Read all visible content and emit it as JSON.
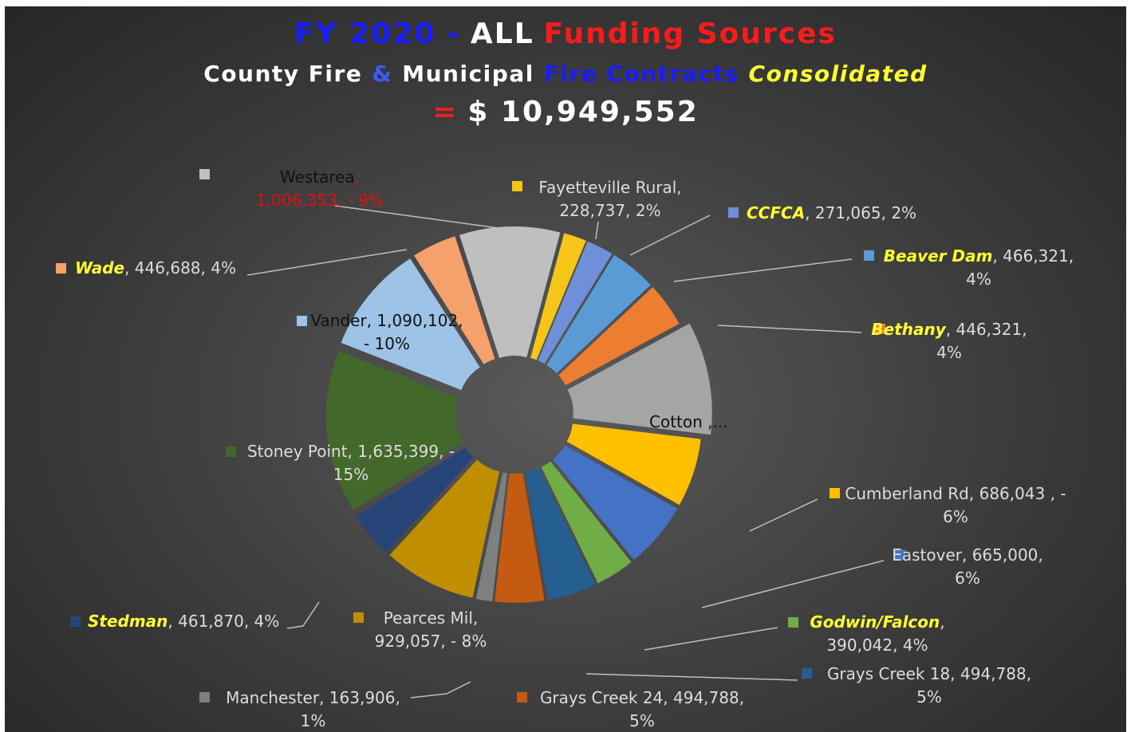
{
  "chart_data": {
    "type": "pie",
    "title_parts": [
      {
        "text": "FY 2020 -",
        "color": "#1a1aff"
      },
      {
        "text": "ALL",
        "color": "#ffffff"
      },
      {
        "text": "Funding Sources",
        "color": "#ff1a1a"
      }
    ],
    "subtitle_parts": [
      {
        "text": "County Fire",
        "color": "#ffffff"
      },
      {
        "text": "&",
        "color": "#3b5bff"
      },
      {
        "text": "Municipal",
        "color": "#ffffff"
      },
      {
        "text": "Fire Contracts",
        "color": "#1a1aff"
      },
      {
        "text": "Consolidated",
        "color": "#ffff33"
      }
    ],
    "total_parts": [
      {
        "text": "=",
        "color": "#ff1a1a"
      },
      {
        "text": "$ 10,949,552",
        "color": "#ffffff"
      }
    ],
    "categories": [
      "Westarea",
      "Fayetteville Rural",
      "CCFCA",
      "Beaver Dam",
      "Bethany",
      "Cotton",
      "Cumberland Rd",
      "Eastover",
      "Godwin/Falcon",
      "Grays Creek 18",
      "Grays Creek 24",
      "Manchester",
      "Pearces Mil",
      "Stedman",
      "Stoney Point",
      "Vander",
      "Wade"
    ],
    "values": [
      1006353,
      228737,
      271065,
      466321,
      446321,
      1073072,
      686043,
      665000,
      390042,
      494788,
      494788,
      163906,
      929057,
      461870,
      1635399,
      1090102,
      446688
    ],
    "value_labels": [
      ", 1,006,353, - 9%",
      ", 228,737, 2%",
      ", 271,065, 2%",
      ", 466,321, 4%",
      ", 446,321, 4%",
      " ,...",
      ", 686,043 , - 6%",
      ", 665,000, 6%",
      ", 390,042, 4%",
      ", 494,788, 5%",
      ", 494,788, 5%",
      ", 163,906, 1%",
      ", 929,057, - 8%",
      ", 461,870, 4%",
      ", 1,635,399, - 15%",
      ", 1,090,102, - 10%",
      ", 446,688, 4%"
    ],
    "colors": [
      "#bfbfbf",
      "#f5c518",
      "#6f8fd8",
      "#5b9bd5",
      "#ed7d31",
      "#a5a5a5",
      "#ffc000",
      "#4472c4",
      "#70ad47",
      "#255e91",
      "#c55a11",
      "#7f7f7f",
      "#bf8f00",
      "#264478",
      "#43682b",
      "#9dc3e6",
      "#f4a16b"
    ],
    "label_colors": [
      "#111111",
      "#dddddd",
      "#ffff33",
      "#ffff33",
      "#ffff33",
      "#111111",
      "#dddddd",
      "#dddddd",
      "#ffff33",
      "#dddddd",
      "#dddddd",
      "#dddddd",
      "#dddddd",
      "#ffff33",
      "#dddddd",
      "#111111",
      "#ffff33"
    ],
    "value_label_colors": [
      "#e01010",
      "#dddddd",
      "#dddddd",
      "#dddddd",
      "#dddddd",
      "#111111",
      "#dddddd",
      "#dddddd",
      "#dddddd",
      "#dddddd",
      "#dddddd",
      "#dddddd",
      "#dddddd",
      "#dddddd",
      "#dddddd",
      "#111111",
      "#dddddd"
    ]
  }
}
